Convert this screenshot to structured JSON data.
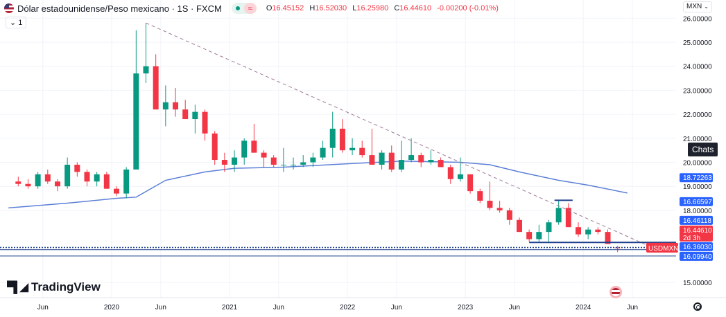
{
  "header": {
    "symbol_title": "Dólar estadounidense/Peso mexicano · 1S · FXCM",
    "market_status_icon": "green-dot",
    "data_status_icon": "approx-icon",
    "data_status_glyph": "≈",
    "ohlc": {
      "o_label": "O",
      "o": "16.45152",
      "h_label": "H",
      "h": "16.52030",
      "l_label": "L",
      "l": "16.25980",
      "c_label": "C",
      "c": "16.44610",
      "change": "-0.00200 (-0.01%)"
    },
    "collapse_label": "⌄ 1",
    "currency": "MXN"
  },
  "tooltip": "Chats",
  "logo": "TradingView",
  "colors": {
    "up": "#089981",
    "down": "#f23645",
    "ma": "#5b7fd6",
    "trend": "#9c7a98",
    "price_line": "#2962ff",
    "label_blue": "#2962ff",
    "label_red": "#f23645"
  },
  "chart_data": {
    "type": "candlestick",
    "symbol": "USDMXN",
    "interval": "1S",
    "ylim": [
      14.7,
      26.1
    ],
    "yticks": [
      "26.00000",
      "25.00000",
      "24.00000",
      "23.00000",
      "22.00000",
      "21.00000",
      "20.00000",
      "19.00000",
      "18.00000",
      "15.00000"
    ],
    "xticks": [
      {
        "label": "Jun",
        "date": "2019-06"
      },
      {
        "label": "2020",
        "date": "2020-01"
      },
      {
        "label": "Jun",
        "date": "2020-06"
      },
      {
        "label": "2021",
        "date": "2021-01"
      },
      {
        "label": "Jun",
        "date": "2021-06"
      },
      {
        "label": "2022",
        "date": "2022-01"
      },
      {
        "label": "Jun",
        "date": "2022-06"
      },
      {
        "label": "2023",
        "date": "2023-01"
      },
      {
        "label": "Jun",
        "date": "2023-06"
      },
      {
        "label": "2024",
        "date": "2024-01"
      },
      {
        "label": "Jun",
        "date": "2024-06"
      }
    ],
    "grid": true,
    "candles": [
      [
        "2019-03",
        19.2,
        19.4,
        19.0,
        19.1
      ],
      [
        "2019-04",
        19.1,
        19.3,
        18.9,
        19.0
      ],
      [
        "2019-05",
        19.0,
        19.6,
        18.9,
        19.5
      ],
      [
        "2019-06",
        19.5,
        19.7,
        19.1,
        19.2
      ],
      [
        "2019-07",
        19.2,
        19.3,
        18.8,
        19.0
      ],
      [
        "2019-08",
        19.0,
        20.2,
        18.9,
        19.9
      ],
      [
        "2019-09",
        19.9,
        20.0,
        19.4,
        19.6
      ],
      [
        "2019-10",
        19.6,
        19.7,
        19.0,
        19.2
      ],
      [
        "2019-11",
        19.2,
        19.6,
        19.0,
        19.5
      ],
      [
        "2019-12",
        19.5,
        19.6,
        18.9,
        18.9
      ],
      [
        "2020-01",
        18.9,
        19.0,
        18.6,
        18.7
      ],
      [
        "2020-02",
        18.7,
        19.8,
        18.5,
        19.7
      ],
      [
        "2020-03",
        19.7,
        25.5,
        19.7,
        23.7
      ],
      [
        "2020-04",
        23.7,
        25.8,
        23.3,
        24.0
      ],
      [
        "2020-05",
        24.0,
        24.5,
        22.2,
        22.2
      ],
      [
        "2020-06",
        22.2,
        23.2,
        21.5,
        22.5
      ],
      [
        "2020-07",
        22.5,
        23.1,
        21.9,
        22.2
      ],
      [
        "2020-08",
        22.2,
        22.6,
        21.8,
        21.8
      ],
      [
        "2020-09",
        21.8,
        22.4,
        21.2,
        22.1
      ],
      [
        "2020-10",
        22.1,
        22.2,
        20.9,
        21.2
      ],
      [
        "2020-11",
        21.2,
        21.3,
        19.9,
        20.1
      ],
      [
        "2020-12",
        20.1,
        20.4,
        19.6,
        19.9
      ],
      [
        "2021-01",
        19.9,
        20.5,
        19.6,
        20.2
      ],
      [
        "2021-02",
        20.2,
        21.0,
        19.9,
        20.9
      ],
      [
        "2021-03",
        20.9,
        21.6,
        20.4,
        20.4
      ],
      [
        "2021-04",
        20.4,
        20.5,
        19.8,
        20.2
      ],
      [
        "2021-05",
        20.2,
        20.3,
        19.8,
        19.9
      ],
      [
        "2021-06",
        19.9,
        20.6,
        19.6,
        19.9
      ],
      [
        "2021-07",
        19.9,
        20.2,
        19.7,
        19.9
      ],
      [
        "2021-08",
        19.9,
        20.3,
        19.8,
        20.0
      ],
      [
        "2021-09",
        20.0,
        20.4,
        19.8,
        20.2
      ],
      [
        "2021-10",
        20.2,
        20.9,
        20.1,
        20.6
      ],
      [
        "2021-11",
        20.6,
        22.1,
        20.2,
        21.4
      ],
      [
        "2021-12",
        21.4,
        21.8,
        20.4,
        20.5
      ],
      [
        "2022-01",
        20.5,
        21.0,
        20.3,
        20.6
      ],
      [
        "2022-02",
        20.6,
        20.9,
        20.2,
        20.3
      ],
      [
        "2022-03",
        20.3,
        21.4,
        19.9,
        19.9
      ],
      [
        "2022-04",
        19.9,
        20.5,
        19.7,
        20.4
      ],
      [
        "2022-05",
        20.4,
        20.7,
        19.6,
        19.7
      ],
      [
        "2022-06",
        19.7,
        20.9,
        19.6,
        20.1
      ],
      [
        "2022-07",
        20.1,
        21.0,
        20.0,
        20.3
      ],
      [
        "2022-08",
        20.3,
        20.4,
        19.8,
        20.0
      ],
      [
        "2022-09",
        20.0,
        20.5,
        19.9,
        20.1
      ],
      [
        "2022-10",
        20.1,
        20.2,
        19.8,
        19.8
      ],
      [
        "2022-11",
        19.8,
        19.9,
        19.1,
        19.3
      ],
      [
        "2022-12",
        19.3,
        20.2,
        19.2,
        19.5
      ],
      [
        "2023-01",
        19.5,
        19.5,
        18.7,
        18.8
      ],
      [
        "2023-02",
        18.8,
        18.9,
        18.3,
        18.4
      ],
      [
        "2023-03",
        18.4,
        19.2,
        18.0,
        18.1
      ],
      [
        "2023-04",
        18.1,
        18.4,
        17.9,
        18.0
      ],
      [
        "2023-05",
        18.0,
        18.1,
        17.4,
        17.6
      ],
      [
        "2023-06",
        17.6,
        17.7,
        17.1,
        17.1
      ],
      [
        "2023-07",
        17.1,
        17.2,
        16.7,
        16.8
      ],
      [
        "2023-08",
        16.8,
        17.4,
        16.7,
        17.1
      ],
      [
        "2023-09",
        17.1,
        17.6,
        16.7,
        17.5
      ],
      [
        "2023-10",
        17.5,
        18.4,
        17.4,
        18.1
      ],
      [
        "2023-11",
        18.1,
        18.3,
        17.3,
        17.3
      ],
      [
        "2023-12",
        17.3,
        17.5,
        16.9,
        17.0
      ],
      [
        "2024-01",
        17.0,
        17.3,
        16.8,
        17.2
      ],
      [
        "2024-02",
        17.2,
        17.3,
        17.0,
        17.1
      ],
      [
        "2024-03",
        17.1,
        17.2,
        16.6,
        16.6
      ],
      [
        "2024-04",
        16.45152,
        16.5203,
        16.2598,
        16.4461
      ]
    ],
    "moving_average": [
      [
        "2019-02",
        18.1
      ],
      [
        "2019-08",
        18.3
      ],
      [
        "2020-01",
        18.5
      ],
      [
        "2020-03",
        18.55
      ],
      [
        "2020-06",
        19.25
      ],
      [
        "2020-10",
        19.6
      ],
      [
        "2021-01",
        19.75
      ],
      [
        "2021-06",
        19.8
      ],
      [
        "2022-01",
        19.95
      ],
      [
        "2022-06",
        20.05
      ],
      [
        "2022-12",
        20.0
      ],
      [
        "2023-03",
        19.9
      ],
      [
        "2023-06",
        19.6
      ],
      [
        "2023-10",
        19.25
      ],
      [
        "2024-01",
        19.05
      ],
      [
        "2024-05",
        18.72
      ]
    ],
    "drawings": {
      "trendline": [
        [
          "2020-04",
          25.8
        ],
        [
          "2024-07",
          16.55
        ]
      ],
      "support": {
        "from": "2023-07",
        "price": 16.66597
      },
      "resistance": {
        "from": "2023-10",
        "to": "2023-11",
        "price": 18.42
      }
    },
    "price_lines": [
      {
        "price": 16.46118,
        "label": "16.46118",
        "style": "dotted"
      },
      {
        "price": 16.4461,
        "label": "16.44610",
        "style": "dotted"
      },
      {
        "price": 16.3603,
        "label": "16.36030",
        "style": "solid"
      },
      {
        "price": 16.0994,
        "label": "16.09940",
        "style": "solid"
      }
    ],
    "axis_labels": [
      {
        "text": "18.72263",
        "price": 18.72263,
        "color": "blue"
      },
      {
        "text": "16.66597",
        "price": 16.66597,
        "color": "blue"
      },
      {
        "text": "16.46118",
        "price": 16.46118,
        "color": "blue"
      },
      {
        "text": "16.44610",
        "sub": "2d 3h",
        "price": 16.4461,
        "color": "red",
        "tag": "USDMXN"
      },
      {
        "text": "16.36030",
        "price": 16.3603,
        "color": "blue"
      },
      {
        "text": "16.09940",
        "price": 16.0994,
        "color": "blue"
      }
    ]
  }
}
